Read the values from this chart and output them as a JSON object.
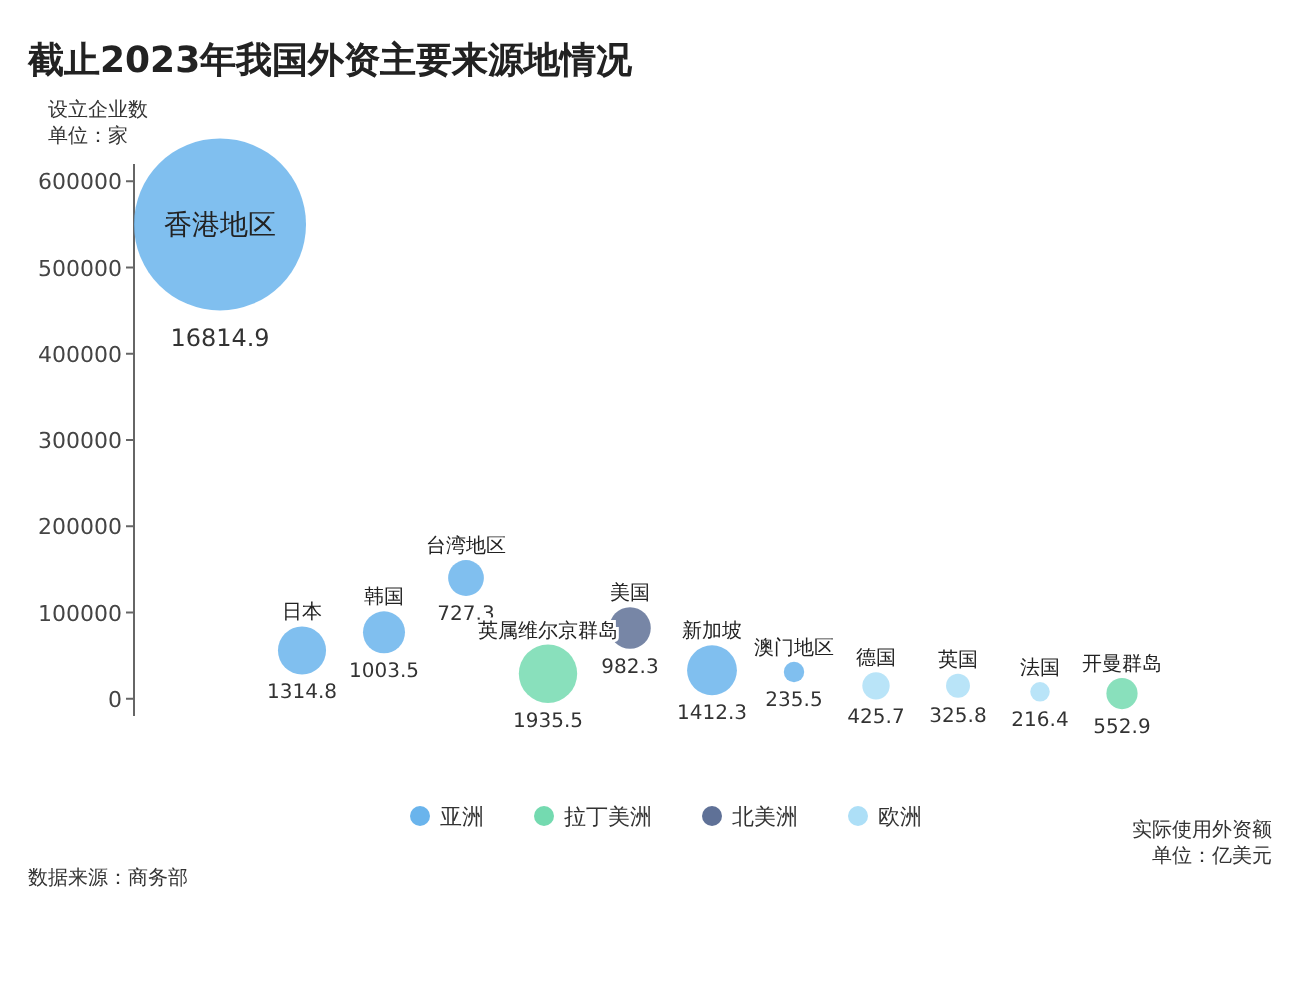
{
  "chart_data": {
    "type": "bubble",
    "title": "截止2023年我国外资主要来源地情况",
    "ylabel": "设立企业数",
    "annotations": [
      "单位：家",
      "实际使用外资额",
      "单位：亿美元",
      "数据来源：商务部"
    ],
    "categories": [
      "香港地区",
      "日本",
      "韩国",
      "台湾地区",
      "英属维尔京群岛",
      "美国",
      "新加坡",
      "澳门地区",
      "德国",
      "英国",
      "法国",
      "开曼群岛"
    ],
    "series": [
      {
        "name": "亚洲",
        "color": "#6ab4ec",
        "values": [
          550000,
          56000,
          77000,
          140000,
          null,
          null,
          33000,
          31000,
          null,
          null,
          null,
          null
        ],
        "sizes": [
          16814.9,
          1314.8,
          1003.5,
          727.3,
          null,
          null,
          1412.3,
          235.5,
          null,
          null,
          null,
          null
        ],
        "value_labels": [
          "16814.9",
          "1314.8",
          "1003.5",
          "727.3",
          null,
          null,
          "1412.3",
          "235.5",
          null,
          null,
          null,
          null
        ]
      },
      {
        "name": "拉丁美洲",
        "color": "#74dab0",
        "values": [
          null,
          null,
          null,
          null,
          29000,
          null,
          null,
          null,
          null,
          null,
          null,
          6000
        ],
        "sizes": [
          null,
          null,
          null,
          null,
          1935.5,
          null,
          null,
          null,
          null,
          null,
          null,
          552.9
        ],
        "value_labels": [
          null,
          null,
          null,
          null,
          "1935.5",
          null,
          null,
          null,
          null,
          null,
          null,
          "552.9"
        ]
      },
      {
        "name": "北美洲",
        "color": "#5f7197",
        "values": [
          null,
          null,
          null,
          null,
          null,
          82000,
          null,
          null,
          null,
          null,
          null,
          null
        ],
        "sizes": [
          null,
          null,
          null,
          null,
          null,
          982.3,
          null,
          null,
          null,
          null,
          null,
          null
        ],
        "value_labels": [
          null,
          null,
          null,
          null,
          null,
          "982.3",
          null,
          null,
          null,
          null,
          null,
          null
        ]
      },
      {
        "name": "欧洲",
        "color": "#addff7",
        "values": [
          null,
          null,
          null,
          null,
          null,
          null,
          null,
          null,
          15000,
          15000,
          8000,
          null
        ],
        "sizes": [
          null,
          null,
          null,
          null,
          null,
          null,
          null,
          null,
          425.7,
          325.8,
          216.4,
          null
        ],
        "value_labels": [
          null,
          null,
          null,
          null,
          null,
          null,
          null,
          null,
          "425.7",
          "325.8",
          "216.4",
          null
        ]
      }
    ],
    "ylim": [
      -20000,
      620000
    ],
    "yticks": [
      0,
      100000,
      200000,
      300000,
      400000,
      500000,
      600000
    ],
    "marker": "circle",
    "legend": "bottom",
    "grid": false
  }
}
